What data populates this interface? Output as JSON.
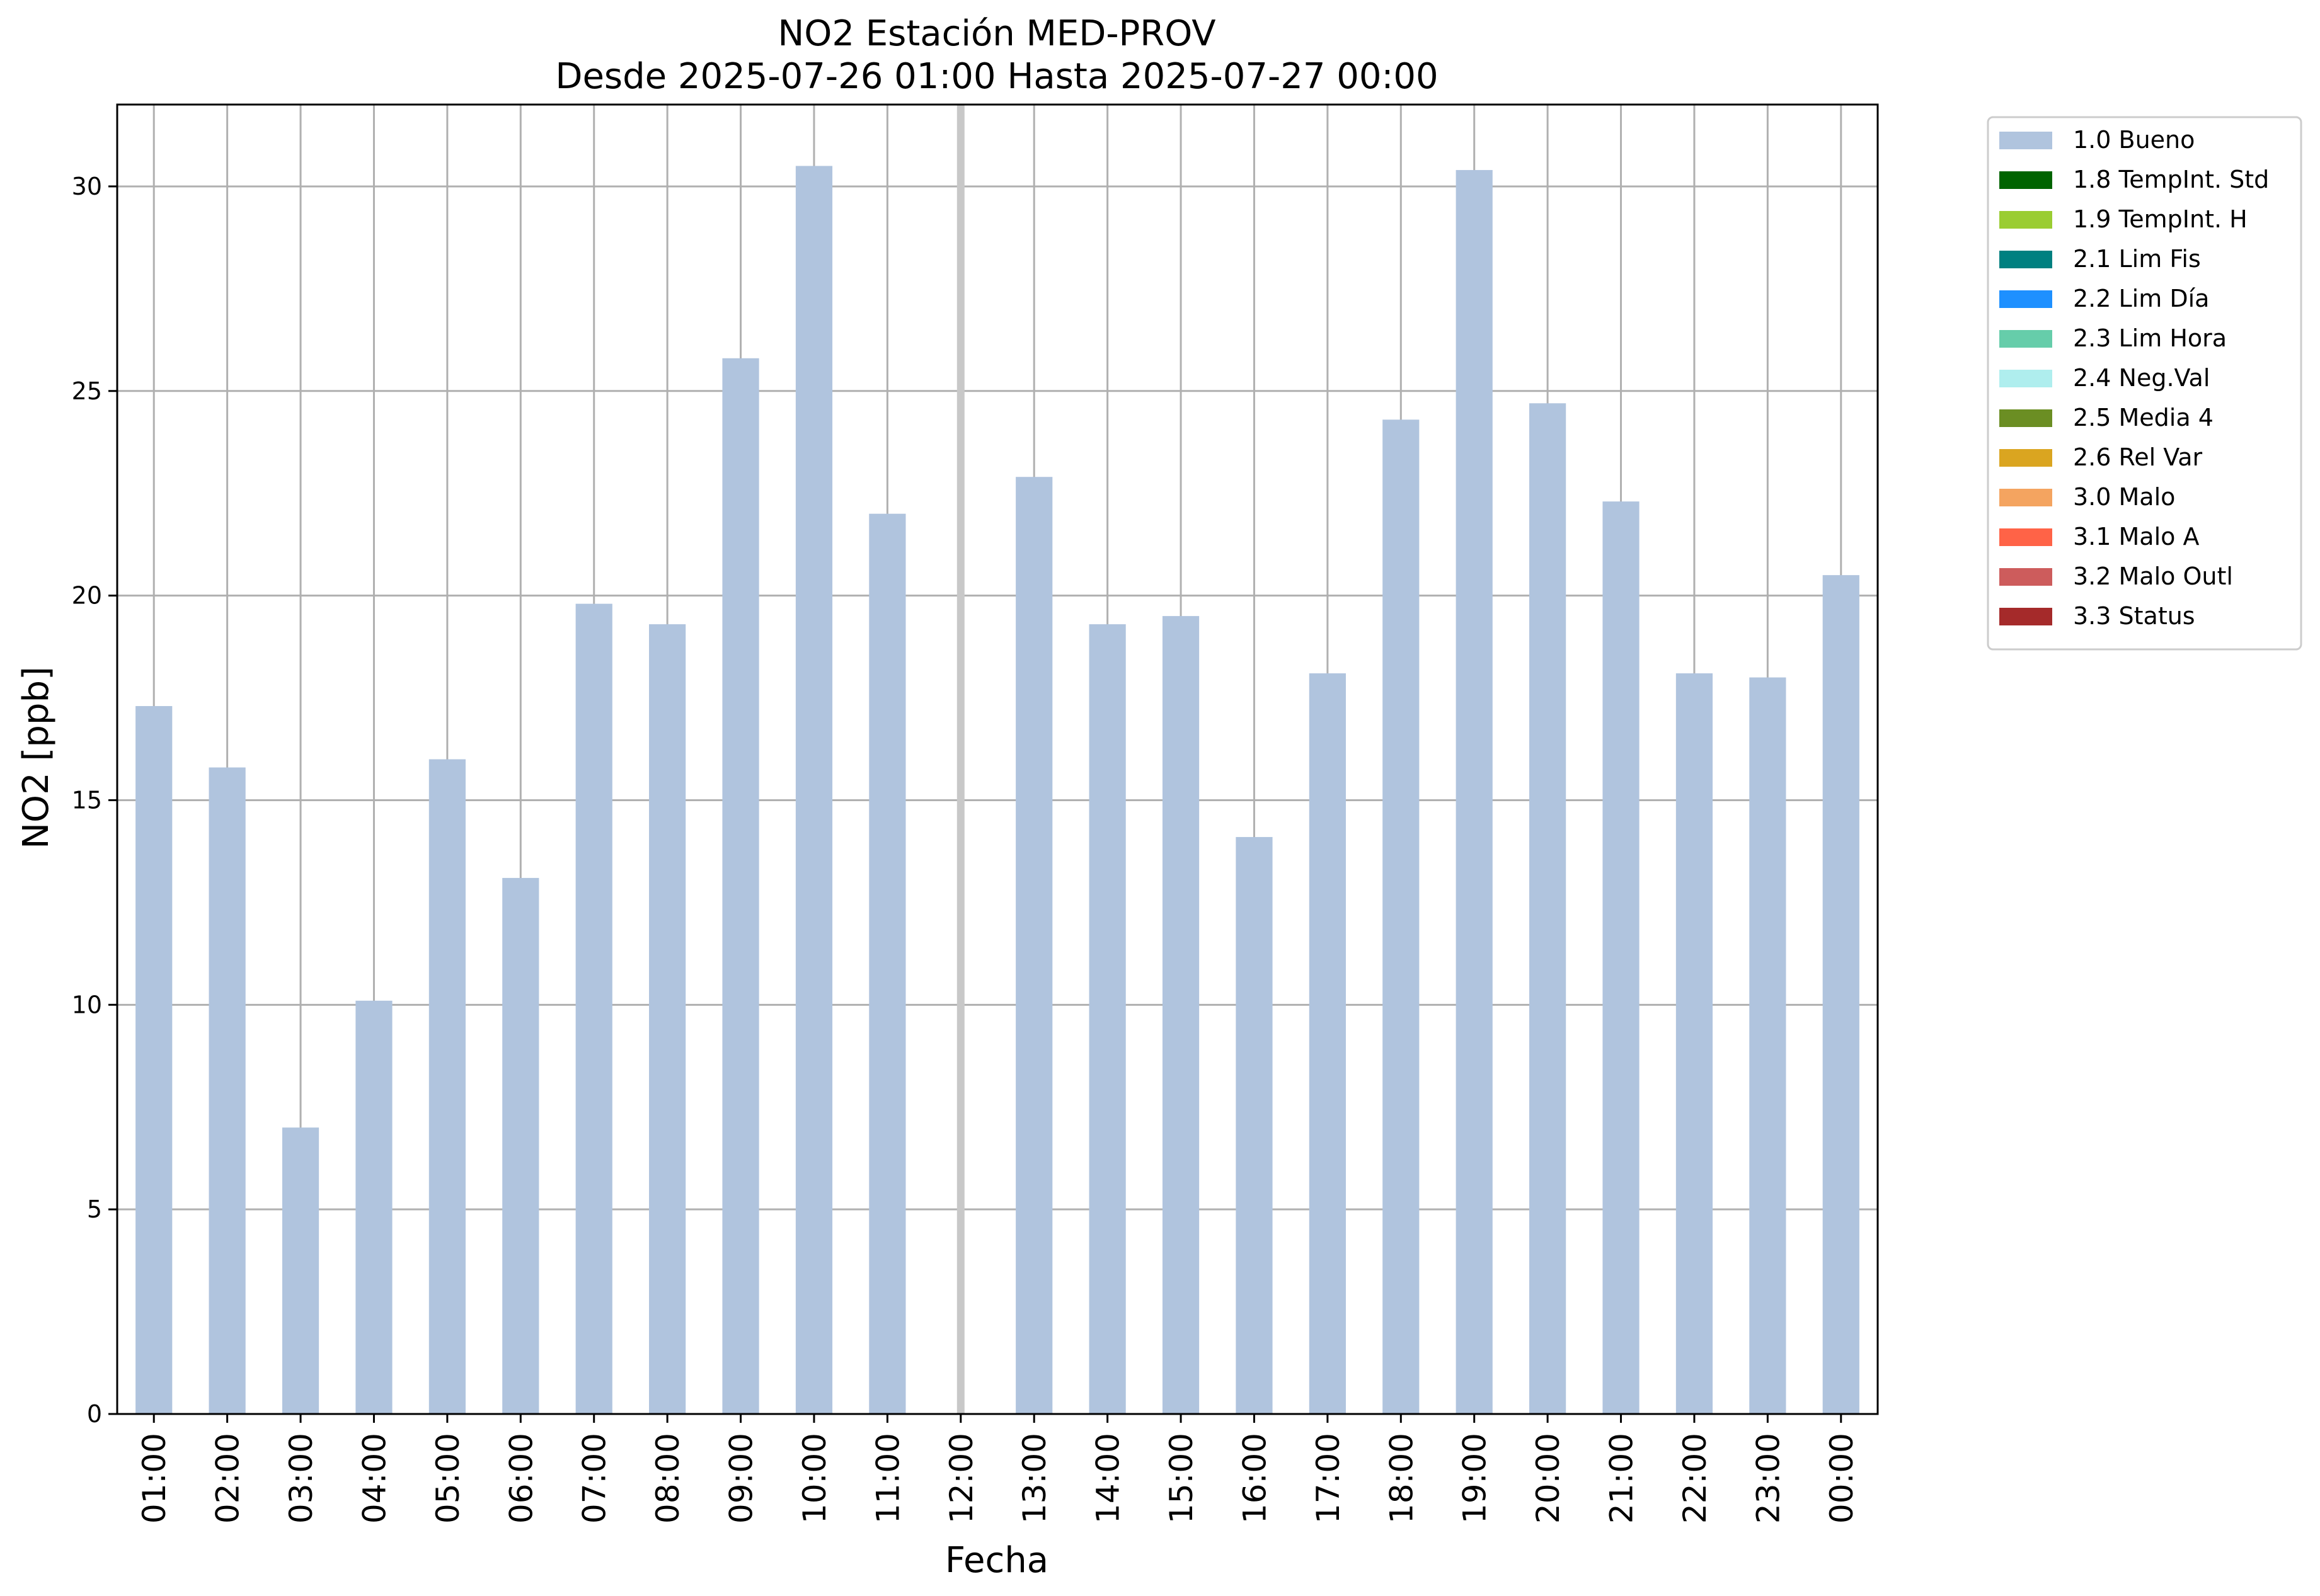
{
  "chart_data": {
    "type": "bar",
    "title": "NO2 Estación MED-PROV",
    "subtitle": "Desde 2025-07-26 01:00 Hasta 2025-07-27 00:00",
    "xlabel": "Fecha",
    "ylabel": "NO2 [ppb]",
    "ylim": [
      0,
      32
    ],
    "yticks": [
      0,
      5,
      10,
      15,
      20,
      25,
      30
    ],
    "grid": true,
    "legend_position": "outside-top-right",
    "categories": [
      "01:00",
      "02:00",
      "03:00",
      "04:00",
      "05:00",
      "06:00",
      "07:00",
      "08:00",
      "09:00",
      "10:00",
      "11:00",
      "12:00",
      "13:00",
      "14:00",
      "15:00",
      "16:00",
      "17:00",
      "18:00",
      "19:00",
      "20:00",
      "21:00",
      "22:00",
      "23:00",
      "00:00"
    ],
    "series": [
      {
        "name": "1.0 Bueno",
        "color": "#b0c4de",
        "values": [
          17.3,
          15.8,
          7.0,
          10.1,
          16.0,
          13.1,
          19.8,
          19.3,
          25.8,
          30.5,
          22.0,
          null,
          22.9,
          19.3,
          19.5,
          14.1,
          18.1,
          24.3,
          30.4,
          24.7,
          22.3,
          18.1,
          18.0,
          20.5
        ]
      }
    ],
    "missing_marker_color": "#c8c8c8",
    "legend": [
      {
        "label": "1.0 Bueno",
        "color": "#b0c4de"
      },
      {
        "label": "1.8 TempInt. Std",
        "color": "#006400"
      },
      {
        "label": "1.9 TempInt. H",
        "color": "#9acd32"
      },
      {
        "label": "2.1 Lim Fis",
        "color": "#008080"
      },
      {
        "label": "2.2 Lim Día",
        "color": "#1e90ff"
      },
      {
        "label": "2.3 Lim Hora",
        "color": "#66cdaa"
      },
      {
        "label": "2.4 Neg.Val",
        "color": "#afeeee"
      },
      {
        "label": "2.5 Media 4",
        "color": "#6b8e23"
      },
      {
        "label": "2.6 Rel Var",
        "color": "#daa520"
      },
      {
        "label": "3.0 Malo",
        "color": "#f4a460"
      },
      {
        "label": "3.1 Malo A",
        "color": "#ff6347"
      },
      {
        "label": "3.2 Malo Outl",
        "color": "#cd5c5c"
      },
      {
        "label": "3.3 Status",
        "color": "#a52a2a"
      }
    ],
    "grid_color": "#b0b0b0"
  }
}
